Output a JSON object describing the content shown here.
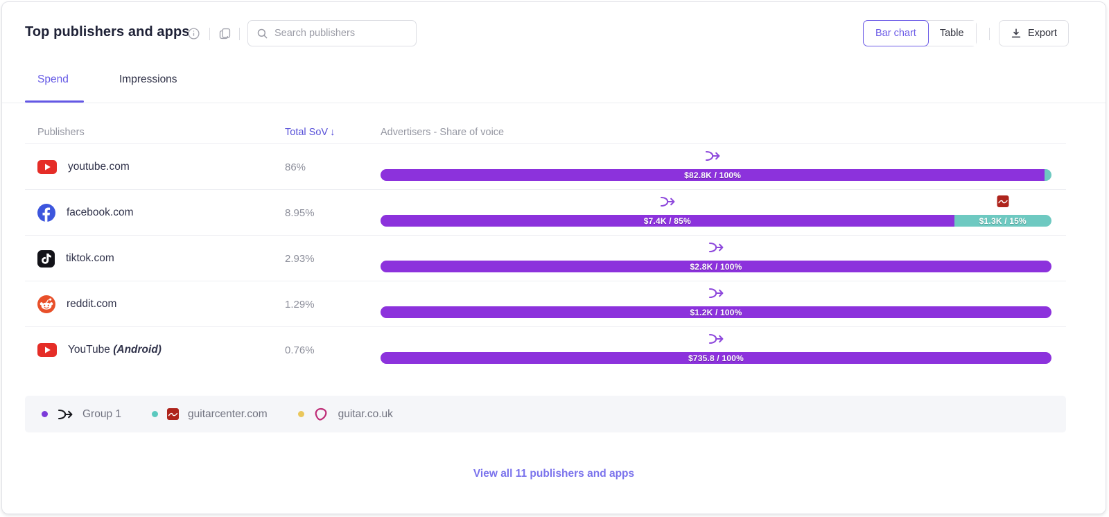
{
  "header": {
    "title": "Top publishers and apps",
    "search_placeholder": "Search publishers",
    "view_toggle": {
      "bar_chart": "Bar chart",
      "table": "Table",
      "active": "Bar chart"
    },
    "export_label": "Export"
  },
  "tabs": [
    {
      "label": "Spend",
      "active": true
    },
    {
      "label": "Impressions",
      "active": false
    }
  ],
  "columns": {
    "publishers": "Publishers",
    "total_sov": "Total SoV",
    "sort_direction": "desc",
    "sort_arrow": "↓",
    "advertisers": "Advertisers - Share of voice"
  },
  "rows": [
    {
      "publisher": "youtube.com",
      "publisher_suffix": "",
      "icon": "youtube-icon",
      "sov": "86%",
      "segments": [
        {
          "advertiser": "Group 1",
          "label": "$82.8K / 100%",
          "width_pct": 99,
          "color": "purple",
          "marker": "group1-arrow-icon"
        },
        {
          "advertiser": "guitarcenter.com",
          "label": "",
          "width_pct": 1,
          "color": "teal",
          "marker": null
        }
      ]
    },
    {
      "publisher": "facebook.com",
      "publisher_suffix": "",
      "icon": "facebook-icon",
      "sov": "8.95%",
      "segments": [
        {
          "advertiser": "Group 1",
          "label": "$7.4K / 85%",
          "width_pct": 85.5,
          "color": "purple",
          "marker": "group1-arrow-icon"
        },
        {
          "advertiser": "guitarcenter.com",
          "label": "$1.3K / 15%",
          "width_pct": 14.5,
          "color": "teal",
          "marker": "guitarcenter-icon"
        }
      ]
    },
    {
      "publisher": "tiktok.com",
      "publisher_suffix": "",
      "icon": "tiktok-icon",
      "sov": "2.93%",
      "segments": [
        {
          "advertiser": "Group 1",
          "label": "$2.8K / 100%",
          "width_pct": 100,
          "color": "purple",
          "marker": "group1-arrow-icon"
        }
      ]
    },
    {
      "publisher": "reddit.com",
      "publisher_suffix": "",
      "icon": "reddit-icon",
      "sov": "1.29%",
      "segments": [
        {
          "advertiser": "Group 1",
          "label": "$1.2K / 100%",
          "width_pct": 100,
          "color": "purple",
          "marker": "group1-arrow-icon"
        }
      ]
    },
    {
      "publisher": "YouTube",
      "publisher_suffix": "(Android)",
      "icon": "youtube-icon",
      "sov": "0.76%",
      "segments": [
        {
          "advertiser": "Group 1",
          "label": "$735.8 / 100%",
          "width_pct": 100,
          "color": "purple",
          "marker": "group1-arrow-icon"
        }
      ]
    }
  ],
  "legend": [
    {
      "label": "Group 1",
      "dot_color": "#7C3BD9",
      "icon": "group1-arrow-icon"
    },
    {
      "label": "guitarcenter.com",
      "dot_color": "#5BC9BF",
      "icon": "guitarcenter-icon"
    },
    {
      "label": "guitar.co.uk",
      "dot_color": "#EAC75C",
      "icon": "plectrum-icon"
    }
  ],
  "footer": {
    "view_all": "View all 11 publishers and apps"
  },
  "colors": {
    "bar_purple": "#8C32DC",
    "bar_teal": "#6EC9C1",
    "accent": "#6458E5",
    "sort_header": "#564FD8"
  },
  "chart_data": {
    "type": "bar",
    "orientation": "horizontal-stacked",
    "title": "Top publishers and apps",
    "tab_metric": "Spend",
    "categories": [
      "youtube.com",
      "facebook.com",
      "tiktok.com",
      "reddit.com",
      "YouTube (Android)"
    ],
    "total_sov_pct": [
      86,
      8.95,
      2.93,
      1.29,
      0.76
    ],
    "series": [
      {
        "name": "Group 1",
        "color": "#8C32DC",
        "spend_labels": [
          "$82.8K",
          "$7.4K",
          "$2.8K",
          "$1.2K",
          "$735.8"
        ],
        "share_pct": [
          100,
          85,
          100,
          100,
          100
        ]
      },
      {
        "name": "guitarcenter.com",
        "color": "#6EC9C1",
        "spend_labels": [
          null,
          "$1.3K",
          null,
          null,
          null
        ],
        "share_pct": [
          0,
          15,
          0,
          0,
          0
        ]
      },
      {
        "name": "guitar.co.uk",
        "color": "#EAC75C",
        "spend_labels": [
          null,
          null,
          null,
          null,
          null
        ],
        "share_pct": [
          0,
          0,
          0,
          0,
          0
        ]
      }
    ],
    "xlabel": "Advertisers - Share of voice",
    "ylabel": "Publishers",
    "legend_position": "bottom",
    "grid": false
  }
}
